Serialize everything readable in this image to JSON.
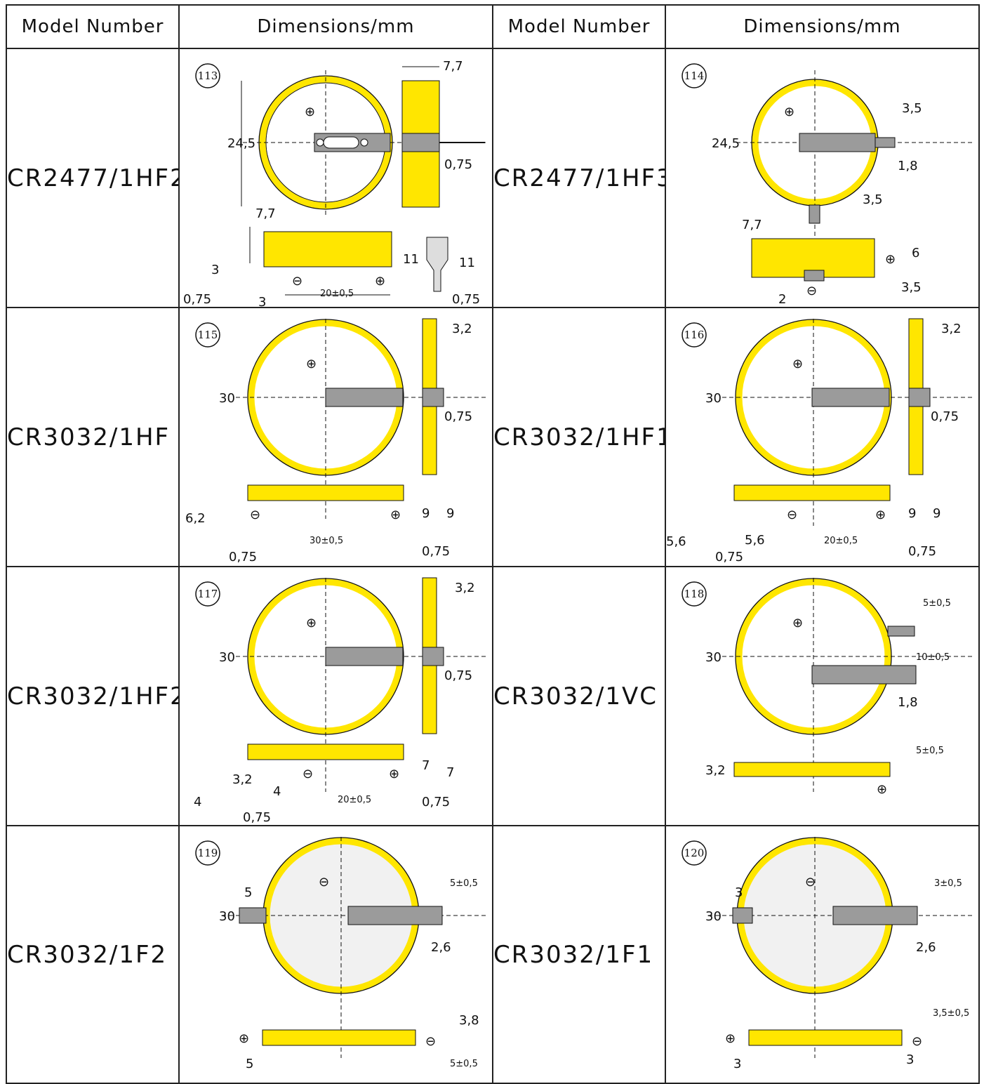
{
  "headers": [
    "Model Number",
    "Dimensions/mm",
    "Model Number",
    "Dimensions/mm"
  ],
  "rows": [
    {
      "left": {
        "model": "CR2477/1HF2",
        "index": "113"
      },
      "right": {
        "model": "CR2477/1HF3",
        "index": "114"
      }
    },
    {
      "left": {
        "model": "CR3032/1HF",
        "index": "115"
      },
      "right": {
        "model": "CR3032/1HF1",
        "index": "116"
      }
    },
    {
      "left": {
        "model": "CR3032/1HF2",
        "index": "117"
      },
      "right": {
        "model": "CR3032/1VC",
        "index": "118"
      }
    },
    {
      "left": {
        "model": "CR3032/1F2",
        "index": "119"
      },
      "right": {
        "model": "CR3032/1F1",
        "index": "120"
      }
    }
  ],
  "dims": {
    "d113": {
      "dia": "24,5",
      "thick": "7,7",
      "pin": "0,75",
      "h1": "7,7",
      "a": "3",
      "b": "0,75",
      "c": "3",
      "span": "20±0,5",
      "h2": "11",
      "h3": "11",
      "d": "0,75"
    },
    "d114": {
      "dia": "24,5",
      "t1": "3,5",
      "t2": "1,8",
      "t3": "3,5",
      "h1": "7,7",
      "h2": "6",
      "a": "2",
      "b": "3,5"
    },
    "d115": {
      "dia": "30",
      "thick": "3,2",
      "pin": "0,75",
      "a": "6,2",
      "span": "30±0,5",
      "h2": "9",
      "h3": "9",
      "b": "0,75",
      "c": "0,75"
    },
    "d116": {
      "dia": "30",
      "thick": "3,2",
      "pin": "0,75",
      "a": "5,6",
      "b": "5,6",
      "span": "20±0,5",
      "h2": "9",
      "h3": "9",
      "c": "0,75",
      "d": "0,75"
    },
    "d117": {
      "dia": "30",
      "thick": "3,2",
      "pin": "0,75",
      "a": "3,2",
      "b": "4",
      "c": "4",
      "span": "20±0,5",
      "h2": "7",
      "h3": "7",
      "d": "0,75",
      "e": "0,75"
    },
    "d118": {
      "dia": "30",
      "t1": "5±0,5",
      "t2": "10±0,5",
      "t3": "1,8",
      "h1": "3,2",
      "t4": "5±0,5"
    },
    "d119": {
      "dia": "30",
      "a": "5",
      "b": "5±0,5",
      "c": "2,6",
      "d": "3,8",
      "e": "5",
      "f": "5±0,5"
    },
    "d120": {
      "dia": "30",
      "a": "3",
      "b": "3±0,5",
      "c": "2,6",
      "d": "3,5±0,5",
      "e": "3",
      "f": "3"
    }
  },
  "symbols": {
    "plus": "⊕",
    "minus": "⊖"
  },
  "colors": {
    "coin_yellow": "#ffe600",
    "tab_gray": "#9b9b9b",
    "line": "#111111"
  }
}
